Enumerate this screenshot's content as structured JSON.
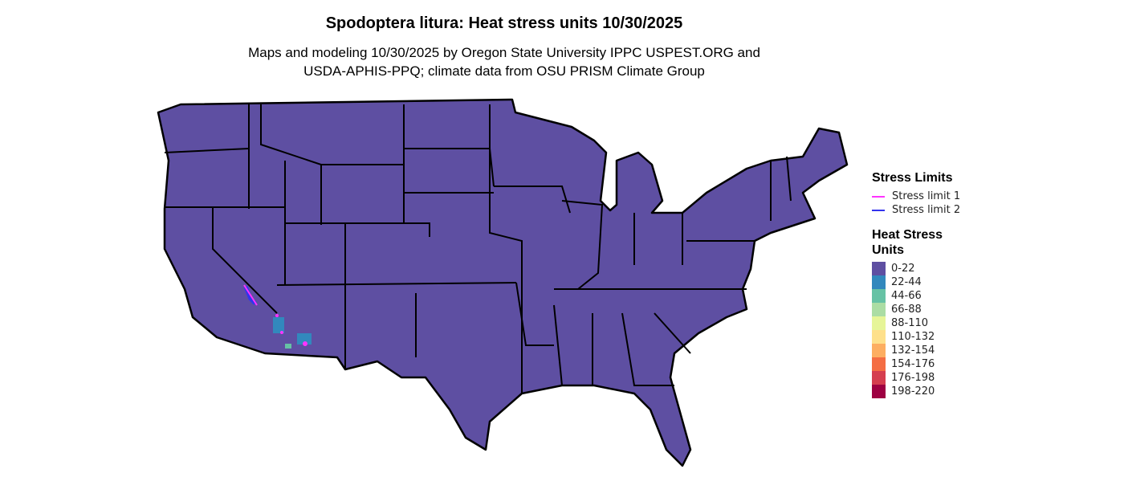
{
  "title": "Spodoptera litura: Heat stress units 10/30/2025",
  "subtitle_line1": "Maps and modeling 10/30/2025 by Oregon State University IPPC USPEST.ORG and",
  "subtitle_line2": "USDA-APHIS-PPQ; climate data from OSU PRISM Climate Group",
  "legend": {
    "stress_title": "Stress Limits",
    "stress": [
      {
        "label": "Stress limit 1",
        "color": "#ff33ff"
      },
      {
        "label": "Stress limit 2",
        "color": "#3333ee"
      }
    ],
    "units_title_1": "Heat Stress",
    "units_title_2": "Units",
    "bins": [
      {
        "label": "0-22",
        "color": "#5e4fa2"
      },
      {
        "label": "22-44",
        "color": "#3288bd"
      },
      {
        "label": "44-66",
        "color": "#66c2a5"
      },
      {
        "label": "66-88",
        "color": "#abdda4"
      },
      {
        "label": "88-110",
        "color": "#e6f598"
      },
      {
        "label": "110-132",
        "color": "#fee08b"
      },
      {
        "label": "132-154",
        "color": "#fdae61"
      },
      {
        "label": "154-176",
        "color": "#f46d43"
      },
      {
        "label": "176-198",
        "color": "#d53e4f"
      },
      {
        "label": "198-220",
        "color": "#9e0142"
      }
    ]
  }
}
